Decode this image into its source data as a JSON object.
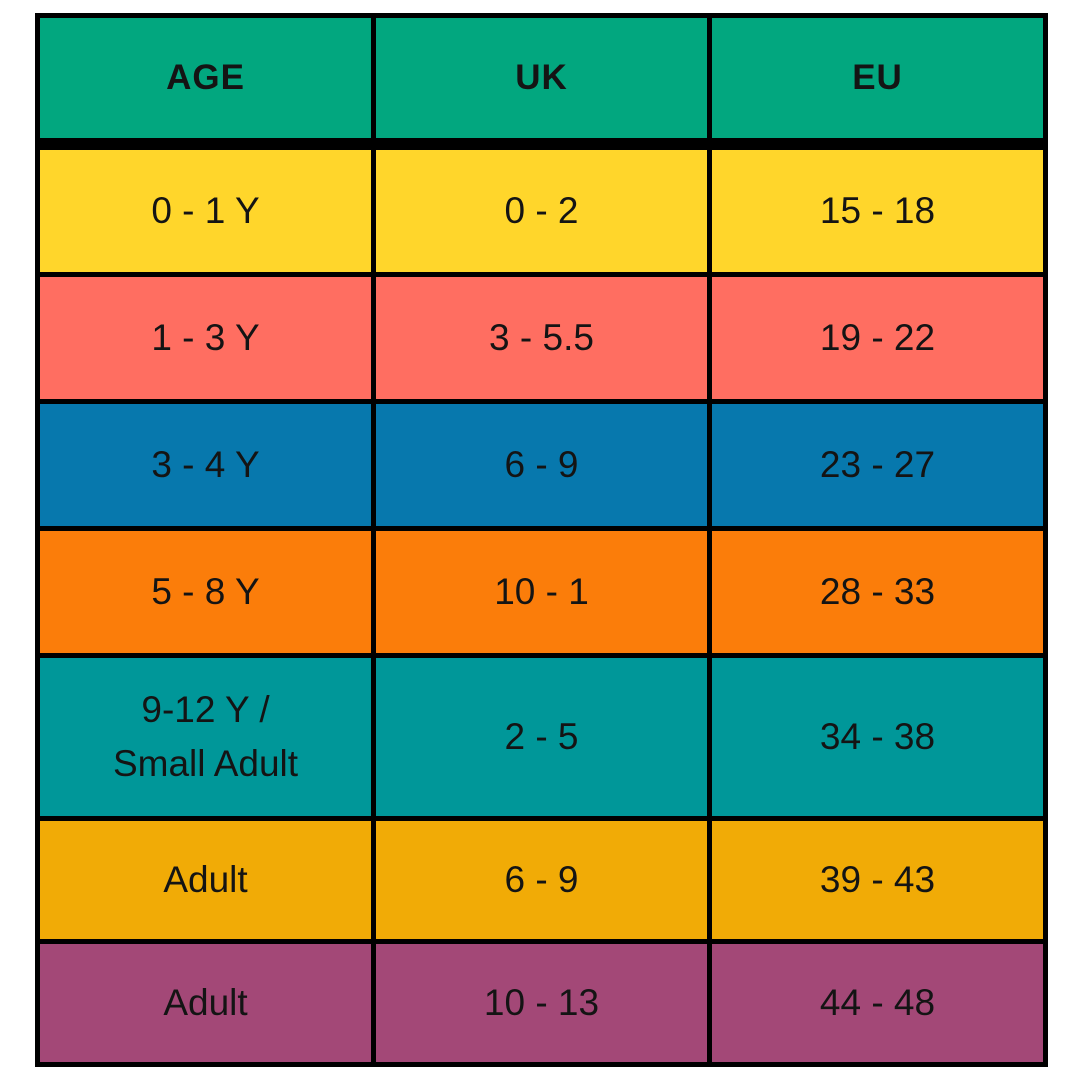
{
  "colors": {
    "canvas": "#FFFFFF",
    "border": "#000000",
    "text": "#141414",
    "header_bg": "#02A77F",
    "row_bgs": [
      "#FFD62B",
      "#FF6E61",
      "#0778AD",
      "#FB7D0A",
      "#009799",
      "#F1AB06",
      "#A34877"
    ]
  },
  "chart_data": {
    "type": "table",
    "columns": [
      "AGE",
      "UK",
      "EU"
    ],
    "rows": [
      [
        "0 - 1 Y",
        "0 - 2",
        "15 - 18"
      ],
      [
        "1 - 3 Y",
        "3 - 5.5",
        "19 - 22"
      ],
      [
        "3 - 4 Y",
        "6 - 9",
        "23 - 27"
      ],
      [
        "5 - 8 Y",
        "10 - 1",
        "28 - 33"
      ],
      [
        "9-12 Y / Small Adult",
        "2 - 5",
        "34 - 38"
      ],
      [
        "Adult",
        "6 - 9",
        "39 - 43"
      ],
      [
        "Adult",
        "10 - 13",
        "44 - 48"
      ]
    ]
  }
}
